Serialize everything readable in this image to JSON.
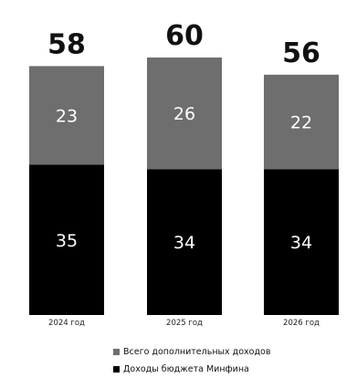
{
  "chart_data": {
    "type": "bar",
    "stacked": true,
    "categories": [
      "2024 год",
      "2025 год",
      "2026 год"
    ],
    "series": [
      {
        "name": "Доходы бюджета Минфина",
        "values": [
          35,
          34,
          34
        ],
        "color": "#000000"
      },
      {
        "name": "Всего  дополнительных доходов",
        "values": [
          23,
          26,
          22
        ],
        "color": "#6e6e6e"
      }
    ],
    "totals": [
      58,
      60,
      56
    ],
    "ylim": [
      0,
      60
    ],
    "grid": false,
    "legend_position": "bottom"
  },
  "legend": {
    "items": [
      {
        "label": "Всего  дополнительных доходов",
        "color": "#6e6e6e"
      },
      {
        "label": "Доходы бюджета Минфина",
        "color": "#000000"
      }
    ]
  }
}
